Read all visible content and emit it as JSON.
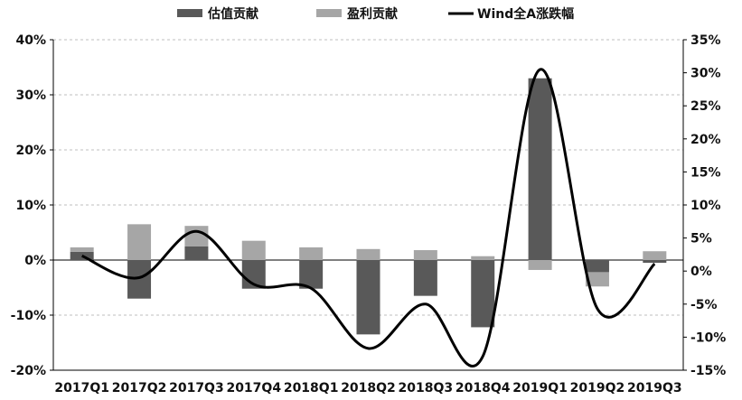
{
  "chart_data": {
    "type": "bar",
    "categories": [
      "2017Q1",
      "2017Q2",
      "2017Q3",
      "2017Q4",
      "2018Q1",
      "2018Q2",
      "2018Q3",
      "2018Q4",
      "2019Q1",
      "2019Q2",
      "2019Q3"
    ],
    "series": [
      {
        "name": "估值贡献",
        "type": "bar",
        "axis": "left",
        "color": "#595959",
        "values": [
          1.5,
          -7.0,
          2.5,
          -5.2,
          -5.2,
          -13.5,
          -6.5,
          -12.2,
          33.0,
          -2.2,
          -0.5
        ]
      },
      {
        "name": "盈利贡献",
        "type": "bar",
        "axis": "left",
        "color": "#a6a6a6",
        "values": [
          0.8,
          6.5,
          3.7,
          3.5,
          2.3,
          2.0,
          1.8,
          0.7,
          -1.8,
          -2.6,
          1.6
        ]
      },
      {
        "name": "Wind全A涨跌幅",
        "type": "line",
        "axis": "right",
        "color": "#000000",
        "values": [
          2.3,
          -1.0,
          6.0,
          -2.0,
          -2.6,
          -11.7,
          -5.0,
          -12.9,
          30.5,
          -5.7,
          1.1
        ]
      }
    ],
    "left_axis": {
      "min": -20,
      "max": 40,
      "step": 10,
      "tick_labels": [
        "-20%",
        "-10%",
        "0%",
        "10%",
        "20%",
        "30%",
        "40%"
      ]
    },
    "right_axis": {
      "min": -15,
      "max": 35,
      "step": 5,
      "tick_labels": [
        "-15%",
        "-10%",
        "-5%",
        "0%",
        "5%",
        "10%",
        "15%",
        "20%",
        "25%",
        "30%",
        "35%"
      ]
    },
    "grid": true,
    "legend_position": "top"
  }
}
